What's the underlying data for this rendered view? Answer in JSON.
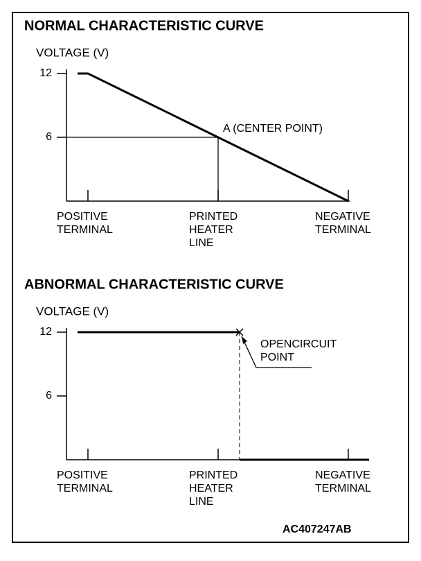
{
  "panels": [
    {
      "title": "NORMAL CHARACTERISTIC CURVE",
      "y_label": "VOLTAGE (V)",
      "ylim": [
        0,
        12
      ],
      "yticks": [
        12,
        6
      ],
      "categories": [
        [
          "POSITIVE",
          "TERMINAL"
        ],
        [
          "PRINTED",
          "HEATER",
          "LINE"
        ],
        [
          "NEGATIVE",
          "TERMINAL"
        ]
      ],
      "curve": {
        "x": [
          -0.08,
          0,
          2
        ],
        "values": [
          12,
          12,
          0
        ]
      },
      "point": {
        "x": 1,
        "value": 6,
        "label": [
          "A (CENTER POINT)"
        ]
      }
    },
    {
      "title": "ABNORMAL CHARACTERISTIC CURVE",
      "y_label": "VOLTAGE (V)",
      "ylim": [
        0,
        12
      ],
      "yticks": [
        12,
        6
      ],
      "categories": [
        [
          "POSITIVE",
          "TERMINAL"
        ],
        [
          "PRINTED",
          "HEATER",
          "LINE"
        ],
        [
          "NEGATIVE",
          "TERMINAL"
        ]
      ],
      "curve": {
        "x": [
          -0.08,
          1.165,
          null,
          1.165,
          2.16
        ],
        "values": [
          12,
          12,
          null,
          0,
          0
        ]
      },
      "point": {
        "x": 1.165,
        "value": 12,
        "label": [
          "OPENCIRCUIT",
          "POINT"
        ]
      }
    }
  ],
  "code": "AC407247AB"
}
